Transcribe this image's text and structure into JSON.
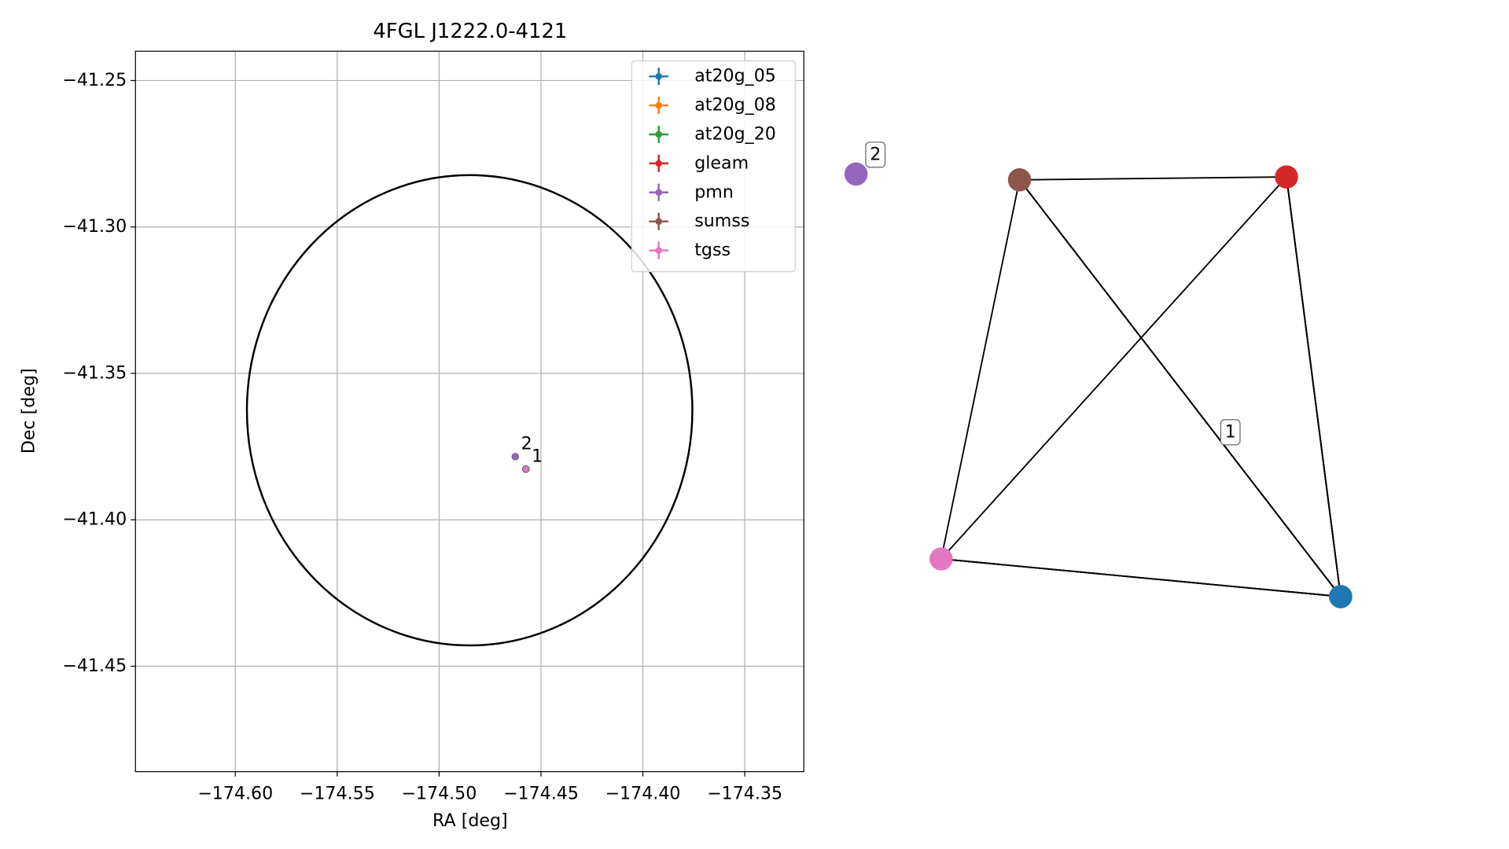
{
  "chart_data": {
    "type": "scatter",
    "title": "4FGL J1222.0-4121",
    "x_label": "RA [deg]",
    "y_label": "Dec [deg]",
    "xlim": [
      -174.649,
      -174.321
    ],
    "ylim": [
      -41.486,
      -41.24
    ],
    "xticks": [
      {
        "value": -174.6,
        "label": "−174.60"
      },
      {
        "value": -174.55,
        "label": "−174.55"
      },
      {
        "value": -174.5,
        "label": "−174.50"
      },
      {
        "value": -174.45,
        "label": "−174.45"
      },
      {
        "value": -174.4,
        "label": "−174.40"
      },
      {
        "value": -174.35,
        "label": "−174.35"
      }
    ],
    "yticks": [
      {
        "value": -41.25,
        "label": "−41.25"
      },
      {
        "value": -41.3,
        "label": "−41.30"
      },
      {
        "value": -41.35,
        "label": "−41.35"
      },
      {
        "value": -41.4,
        "label": "−41.40"
      },
      {
        "value": -41.45,
        "label": "−41.45"
      }
    ],
    "grid": true,
    "legend": "upper right",
    "region": {
      "ra": -174.485,
      "dec": -41.3626,
      "a": 0.1093,
      "b": 0.0803
    },
    "series": [
      {
        "name": "at20g_05",
        "color": "#1f77b4",
        "x": -174.4574,
        "y": -41.3827,
        "group": "1"
      },
      {
        "name": "at20g_08",
        "color": "#ff7f0e",
        "x": -174.4574,
        "y": -41.3827,
        "group": "1"
      },
      {
        "name": "at20g_20",
        "color": "#2ca02c",
        "x": -174.4574,
        "y": -41.3827,
        "group": "1"
      },
      {
        "name": "gleam",
        "color": "#d62728",
        "x": -174.4574,
        "y": -41.3827,
        "group": "1"
      },
      {
        "name": "pmn",
        "color": "#9467bd",
        "x": -174.4626,
        "y": -41.3784,
        "group": "2"
      },
      {
        "name": "sumss",
        "color": "#8c564b",
        "x": -174.4574,
        "y": -41.3827,
        "group": "1"
      },
      {
        "name": "tgss",
        "color": "#e377c2",
        "x": -174.4574,
        "y": -41.3827,
        "group": "1"
      }
    ]
  }
}
